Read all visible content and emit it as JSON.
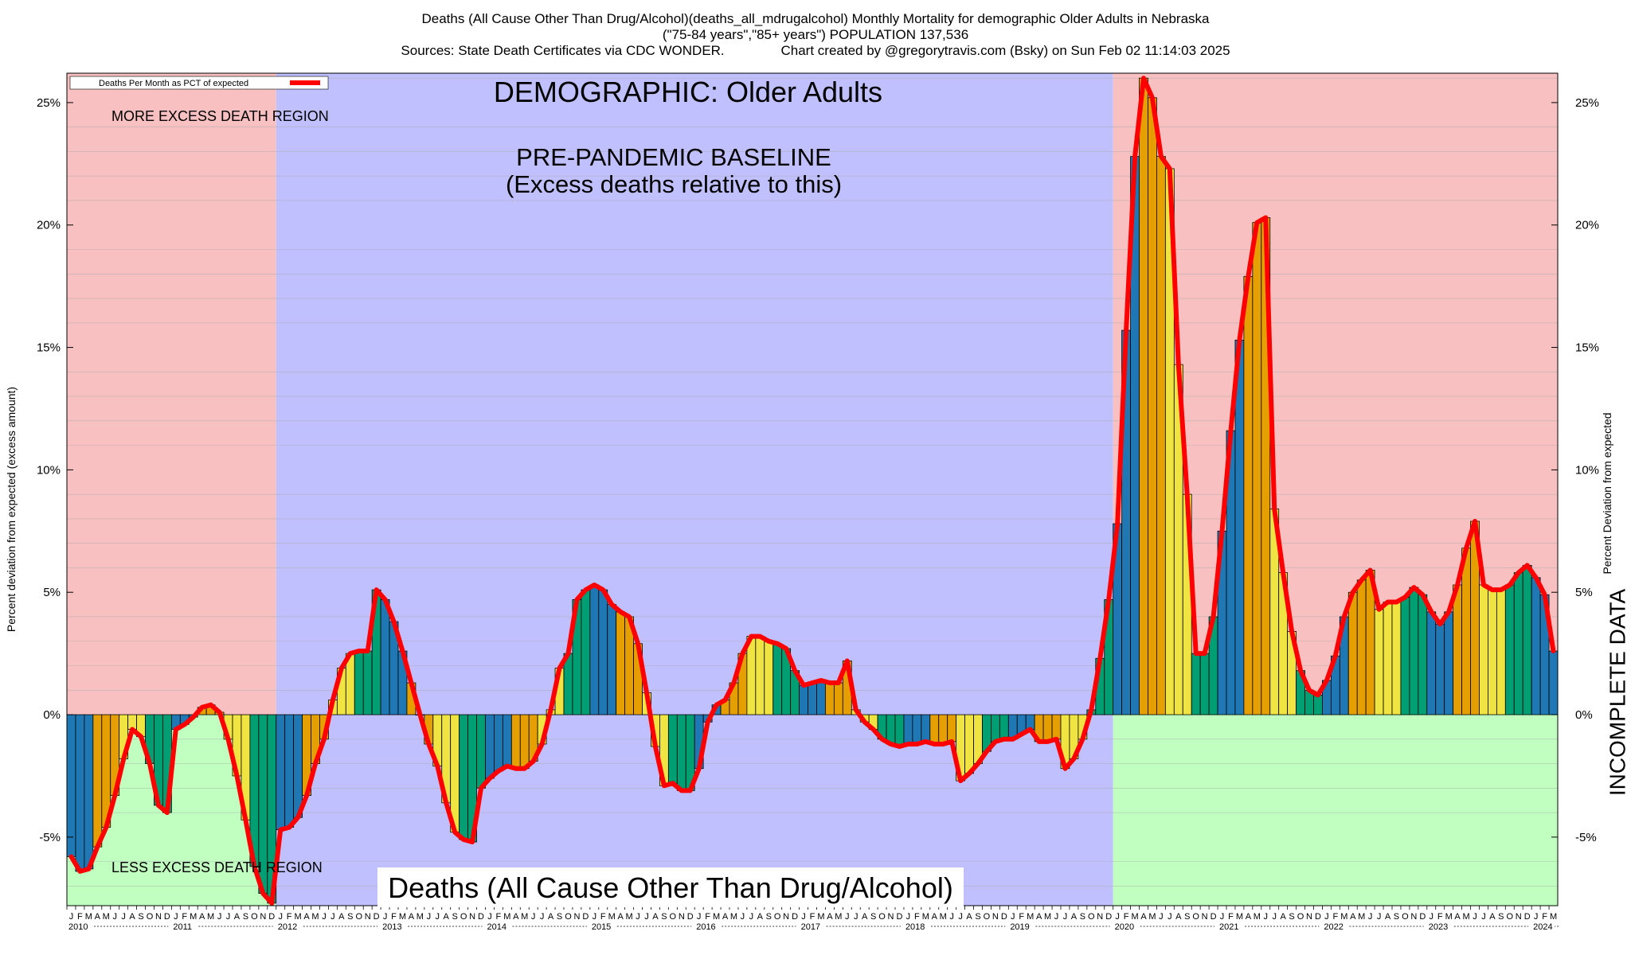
{
  "header": {
    "title_line1": "Deaths (All Cause Other Than Drug/Alcohol)(deaths_all_mdrugalcohol) Monthly Mortality for demographic Older Adults in Nebraska",
    "title_line2": "(\"75-84 years\",\"85+ years\") POPULATION 137,536",
    "title_line3": "Sources: State Death Certificates via CDC WONDER.               Chart created by @gregorytravis.com (Bsky) on Sun Feb 02 11:14:03 2025"
  },
  "colors": {
    "excess_region": "#f8c0c0",
    "baseline_region": "#c0c0ff",
    "less_region": "#c0ffc0",
    "line": "#ff0000",
    "bar_palette": [
      "#1f77b4",
      "#e69f00",
      "#f0e442",
      "#009e73"
    ]
  },
  "chart_data": {
    "type": "bar",
    "title": "Deaths (All Cause Other Than Drug/Alcohol)",
    "legend_label": "Deaths Per Month as PCT of expected",
    "ylabel_left": "Percent deviation from expected (excess amount)",
    "ylabel_right": "Percent Deviation from expected",
    "ylim": [
      -7.8,
      26.2
    ],
    "yticks": [
      -5,
      0,
      5,
      10,
      15,
      20,
      25
    ],
    "ytick_labels": [
      "-5%",
      "0%",
      "5%",
      "10%",
      "15%",
      "20%",
      "25%"
    ],
    "start_year": 2010,
    "month_letters": [
      "J",
      "F",
      "M",
      "A",
      "M",
      "J",
      "J",
      "A",
      "S",
      "O",
      "N",
      "D"
    ],
    "years": [
      "2010",
      "2011",
      "2012",
      "2013",
      "2014",
      "2015",
      "2016",
      "2017",
      "2018",
      "2019",
      "2020",
      "2021",
      "2022",
      "2023",
      "2024"
    ],
    "baseline_start_index": 24,
    "baseline_end_index": 120,
    "incomplete_start_index": 177,
    "values": [
      -5.8,
      -6.4,
      -6.3,
      -5.4,
      -4.6,
      -3.3,
      -1.8,
      -0.6,
      -0.9,
      -2.0,
      -3.7,
      -4.0,
      -0.6,
      -0.4,
      -0.1,
      0.3,
      0.4,
      0.1,
      -1.0,
      -2.5,
      -4.3,
      -6.2,
      -7.3,
      -7.7,
      -4.7,
      -4.6,
      -4.2,
      -3.3,
      -2.0,
      -1.0,
      0.6,
      1.9,
      2.5,
      2.6,
      2.6,
      5.1,
      4.7,
      3.8,
      2.6,
      1.3,
      0.0,
      -1.2,
      -2.1,
      -3.6,
      -4.8,
      -5.1,
      -5.2,
      -3.0,
      -2.6,
      -2.3,
      -2.1,
      -2.2,
      -2.2,
      -1.9,
      -1.2,
      0.2,
      1.9,
      2.5,
      4.7,
      5.1,
      5.3,
      5.1,
      4.5,
      4.2,
      4.0,
      2.9,
      0.9,
      -1.3,
      -2.9,
      -2.8,
      -3.1,
      -3.1,
      -2.2,
      -0.3,
      0.4,
      0.6,
      1.3,
      2.5,
      3.2,
      3.2,
      3.0,
      2.9,
      2.7,
      1.8,
      1.2,
      1.3,
      1.4,
      1.3,
      1.3,
      2.2,
      0.2,
      -0.3,
      -0.6,
      -1.0,
      -1.2,
      -1.3,
      -1.2,
      -1.2,
      -1.1,
      -1.2,
      -1.2,
      -1.1,
      -2.7,
      -2.4,
      -2.0,
      -1.5,
      -1.1,
      -1.0,
      -1.0,
      -0.8,
      -0.6,
      -1.1,
      -1.1,
      -1.0,
      -2.2,
      -1.8,
      -1.0,
      0.2,
      2.3,
      4.7,
      7.8,
      15.7,
      22.8,
      26.0,
      25.2,
      22.8,
      22.3,
      14.3,
      9.0,
      2.5,
      2.5,
      4.0,
      7.5,
      11.6,
      15.3,
      17.9,
      20.1,
      20.3,
      8.4,
      5.8,
      3.4,
      1.8,
      1.0,
      0.8,
      1.4,
      2.4,
      4.0,
      5.0,
      5.5,
      5.9,
      4.3,
      4.6,
      4.6,
      4.8,
      5.2,
      4.9,
      4.2,
      3.7,
      4.2,
      5.3,
      6.8,
      7.9,
      5.3,
      5.1,
      5.1,
      5.3,
      5.8,
      6.1,
      5.6,
      4.9,
      2.6
    ]
  },
  "annotations": {
    "demographic": "DEMOGRAPHIC: Older Adults",
    "baseline_line1": "PRE-PANDEMIC BASELINE",
    "baseline_line2": "(Excess deaths relative to this)",
    "more_region": "MORE EXCESS DEATH REGION",
    "less_region": "LESS EXCESS DEATH REGION",
    "incomplete": "INCOMPLETE DATA"
  }
}
